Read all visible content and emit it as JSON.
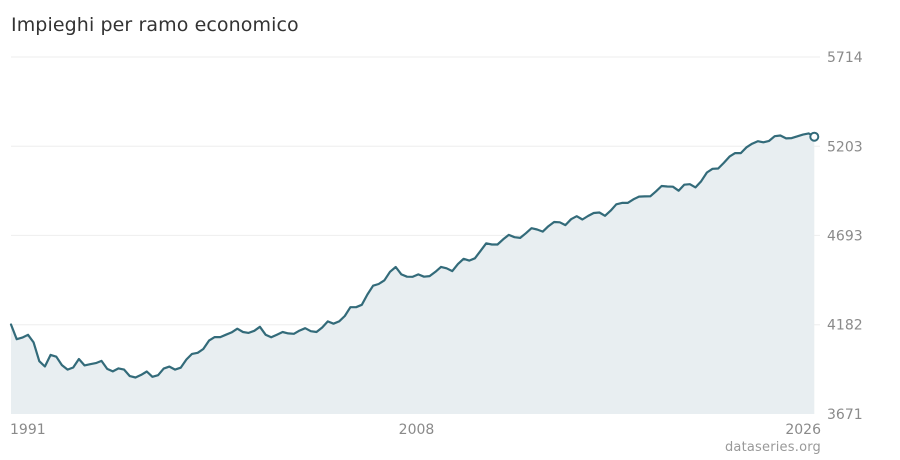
{
  "title": "Impieghi per ramo economico",
  "source": "dataseries.org",
  "colors": {
    "line": "#336b7a",
    "area": "#e8eef1",
    "grid": "#eeeeee",
    "tick_text": "#8a8a8a"
  },
  "chart_data": {
    "type": "area",
    "title": "Impieghi per ramo economico",
    "xlabel": "",
    "ylabel": "",
    "y_ticks": [
      3671,
      4182,
      4693,
      5203,
      5714
    ],
    "ylim": [
      3671,
      5714
    ],
    "x_ticks": [
      "1991",
      "2008",
      "2026"
    ],
    "xlim": [
      1991.0,
      2026.75
    ],
    "grid": "horizontal",
    "frequency": "quarterly",
    "x_start": "1991-Q1",
    "values": [
      4183,
      4099,
      4108,
      4124,
      4081,
      3973,
      3943,
      4009,
      3999,
      3951,
      3925,
      3937,
      3986,
      3949,
      3956,
      3962,
      3975,
      3929,
      3915,
      3932,
      3925,
      3888,
      3880,
      3895,
      3914,
      3884,
      3893,
      3931,
      3942,
      3925,
      3936,
      3983,
      4015,
      4021,
      4043,
      4091,
      4111,
      4111,
      4125,
      4138,
      4159,
      4140,
      4135,
      4147,
      4170,
      4125,
      4110,
      4125,
      4140,
      4132,
      4130,
      4148,
      4162,
      4145,
      4140,
      4166,
      4201,
      4188,
      4201,
      4232,
      4282,
      4282,
      4296,
      4355,
      4405,
      4415,
      4436,
      4485,
      4512,
      4470,
      4457,
      4456,
      4470,
      4457,
      4460,
      4484,
      4513,
      4505,
      4489,
      4529,
      4559,
      4549,
      4562,
      4605,
      4648,
      4641,
      4641,
      4671,
      4696,
      4683,
      4679,
      4705,
      4734,
      4727,
      4715,
      4746,
      4770,
      4768,
      4752,
      4786,
      4803,
      4784,
      4804,
      4821,
      4824,
      4805,
      4835,
      4871,
      4879,
      4879,
      4899,
      4915,
      4916,
      4917,
      4945,
      4976,
      4973,
      4972,
      4949,
      4983,
      4986,
      4968,
      5003,
      5053,
      5074,
      5076,
      5108,
      5144,
      5164,
      5164,
      5197,
      5218,
      5232,
      5226,
      5234,
      5261,
      5265,
      5248,
      5250,
      5260,
      5270,
      5277,
      5258
    ]
  }
}
